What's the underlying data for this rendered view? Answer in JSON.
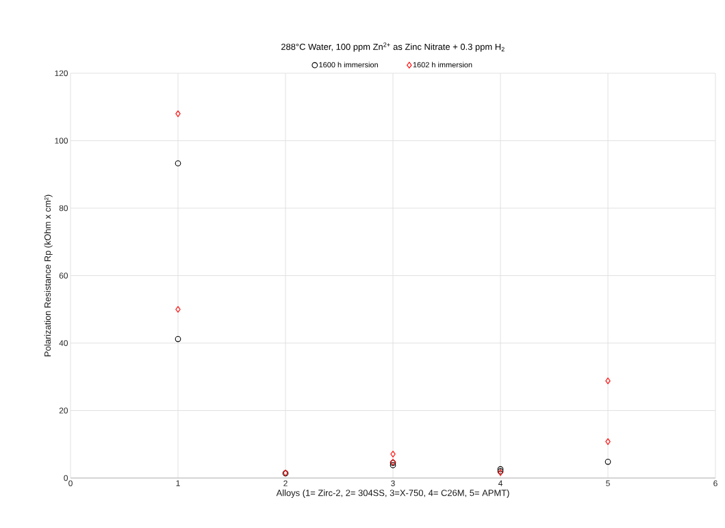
{
  "chart_data": {
    "type": "scatter",
    "title": "288°C Water, 100 ppm Zn$^{2+}$ as Zinc Nitrate  + 0.3 ppm H$_{2}$",
    "xlabel": "Alloys (1= Zirc-2, 2= 304SS, 3=X-750, 4= C26M, 5= APMT)",
    "ylabel": "Polarization Resistance Rp (kOhm x cm²)",
    "xlim": [
      0,
      6
    ],
    "xticks": [
      0,
      1,
      2,
      3,
      4,
      5,
      6
    ],
    "ylim": [
      0,
      120
    ],
    "yticks": [
      0,
      20,
      40,
      60,
      80,
      100,
      120
    ],
    "grid": true,
    "legend": "top",
    "series": [
      {
        "name": "1600 h immersion",
        "color": "#000000",
        "marker": "circle",
        "x": [
          1,
          1,
          2,
          3,
          3,
          4,
          4,
          5
        ],
        "values": [
          93.3,
          41.2,
          1.4,
          3.8,
          4.5,
          2.6,
          2.0,
          4.8
        ]
      },
      {
        "name": "1602 h immersion",
        "color": "#ff0000",
        "marker": "diamond",
        "x": [
          1,
          1,
          2,
          3,
          3,
          4,
          5,
          5
        ],
        "values": [
          108,
          50,
          1.5,
          7.1,
          4.7,
          1.6,
          28.8,
          10.8
        ]
      }
    ]
  }
}
